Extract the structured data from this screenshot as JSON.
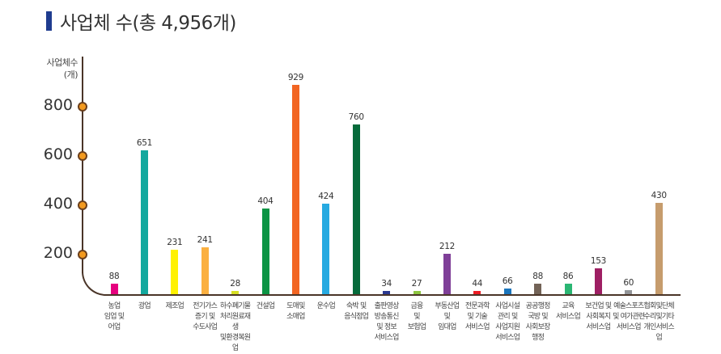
{
  "title": "사업체 수(총 4,956개)",
  "chart_data": {
    "type": "bar",
    "title": "사업체 수(총 4,956개)",
    "ylabel": "사업체수 (개)",
    "xlabel": "",
    "ylim": [
      0,
      950
    ],
    "yticks": [
      200,
      400,
      600,
      800
    ],
    "grid": false,
    "legend": null,
    "categories": [
      "농업 임업 및 어업",
      "광업",
      "제조업",
      "전기가스 증기 및 수도사업",
      "하수폐기물 처리원료재생 및환경복원업",
      "건설업",
      "도매및 소매업",
      "운수업",
      "숙박 및 음식점업",
      "출판영상 방송통신 및 정보 서비스업",
      "금융 및 보험업",
      "부동산업 및 임대업",
      "전문과학 및 기술 서비스업",
      "사업시설 관리 및 사업지원 서비스업",
      "공공행정 국방 및 사회보장 행정",
      "교육 서비스업",
      "보건업 및 사회복지 서비스업",
      "예술스포츠 및 여가관련 서비스업",
      "협회및단체 수리및기타 개인서비스업"
    ],
    "values": [
      88,
      651,
      231,
      241,
      28,
      404,
      929,
      424,
      760,
      34,
      27,
      212,
      44,
      66,
      88,
      86,
      153,
      60,
      430
    ],
    "colors": [
      "#e6007e",
      "#13a89e",
      "#fff100",
      "#fbb040",
      "#d7df23",
      "#0c9444",
      "#f26522",
      "#27aae1",
      "#066b3b",
      "#2b3990",
      "#8dc63f",
      "#7f3f98",
      "#ed1c24",
      "#1b75bc",
      "#736357",
      "#2bb673",
      "#9e1f63",
      "#939598",
      "#c69c6d"
    ]
  },
  "axis": {
    "ylabel_line1": "사업체수",
    "ylabel_line2": "(개)",
    "ticks": [
      "800",
      "600",
      "400",
      "200"
    ]
  },
  "labels": {
    "categories_display": [
      "농업\n임업 및\n어업",
      "광업",
      "제조업",
      "전기가스\n증기 및\n수도사업",
      "하수폐기물\n처리원료재생\n및환경복원업",
      "건설업",
      "도매및\n소매업",
      "운수업",
      "숙박 및\n음식점업",
      "출판영상\n방송통신\n및 정보\n서비스업",
      "금융\n및\n보험업",
      "부동산업\n및\n임대업",
      "전문과학\n및 기술\n서비스업",
      "사업시설\n관리 및\n사업지원\n서비스업",
      "공공행정\n국방 및\n사회보장\n행정",
      "교육\n서비스업",
      "보건업 및\n사회복지\n서비스업",
      "예술스포츠\n및 여가관련\n서비스업",
      "협회및단체\n수리및기타\n개인서비스업"
    ],
    "values_display": [
      "88",
      "651",
      "231",
      "241",
      "28",
      "404",
      "929",
      "424",
      "760",
      "34",
      "27",
      "212",
      "44",
      "66",
      "88",
      "86",
      "153",
      "60",
      "430"
    ]
  }
}
